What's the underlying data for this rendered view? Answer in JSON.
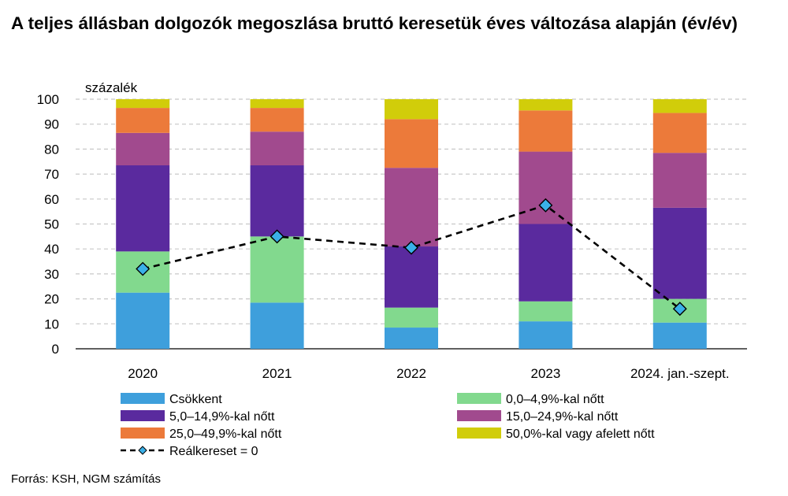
{
  "title": "A teljes állásban dolgozók megoszlása bruttó keresetük éves változása alapján (év/év)",
  "source": "Forrás: KSH, NGM számítás",
  "chart_data": {
    "type": "bar",
    "stacked": true,
    "unit_label": "százalék",
    "categories": [
      "2020",
      "2021",
      "2022",
      "2023",
      "2024. jan.-szept."
    ],
    "ylim": [
      0,
      100
    ],
    "yticks": [
      0,
      10,
      20,
      30,
      40,
      50,
      60,
      70,
      80,
      90,
      100
    ],
    "grid": true,
    "series": [
      {
        "name": "Csökkent",
        "color": "#3e9fdc",
        "values": [
          22.5,
          18.5,
          8.5,
          11,
          10.5
        ]
      },
      {
        "name": "0,0–4,9%-kal nőtt",
        "color": "#82d98e",
        "values": [
          16.5,
          26.5,
          8,
          8,
          9.5
        ]
      },
      {
        "name": "5,0–14,9%-kal nőtt",
        "color": "#5a2a9e",
        "values": [
          34.5,
          28.5,
          24.5,
          31,
          36.5
        ]
      },
      {
        "name": "15,0–24,9%-kal nőtt",
        "color": "#a14a8e",
        "values": [
          13,
          13.5,
          31.5,
          29,
          22
        ]
      },
      {
        "name": "25,0–49,9%-kal nőtt",
        "color": "#ec7a3a",
        "values": [
          10,
          9.5,
          19.5,
          16.5,
          16
        ]
      },
      {
        "name": "50,0%-kal vagy afelett nőtt",
        "color": "#d1cd0a",
        "values": [
          3.5,
          3.5,
          8,
          4.5,
          5.5
        ]
      }
    ],
    "line": {
      "name": "Reálkereset  = 0",
      "color": "#000000",
      "marker_color": "#3ab0e8",
      "values": [
        32,
        45,
        40.5,
        57.5,
        16
      ]
    }
  }
}
